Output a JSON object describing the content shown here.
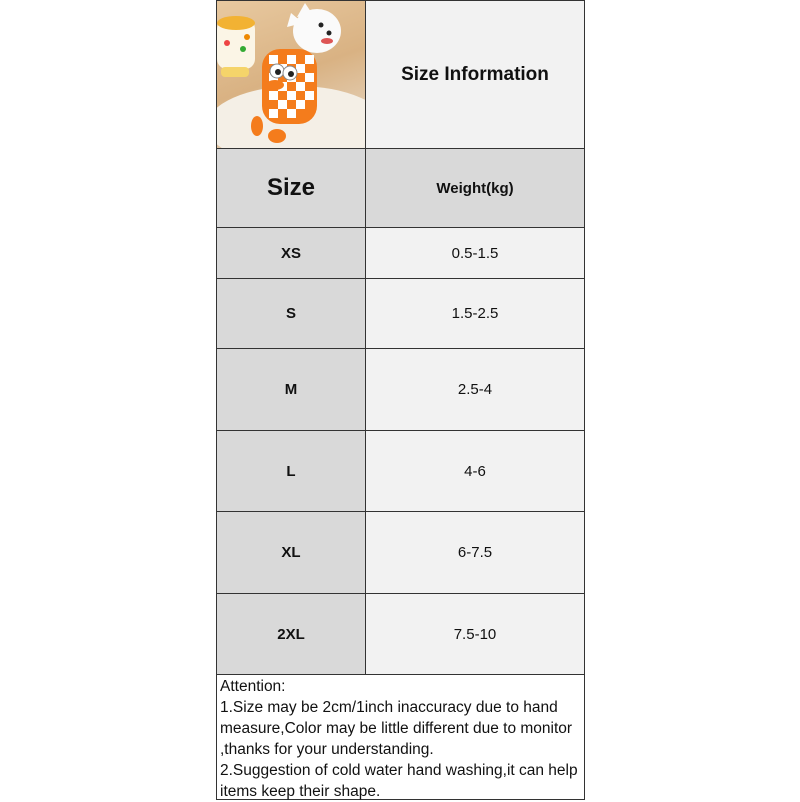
{
  "header": {
    "title": "Size Information"
  },
  "columns": {
    "size": "Size",
    "weight": "Weight(kg)"
  },
  "rows": [
    {
      "size": "XS",
      "weight": "0.5-1.5"
    },
    {
      "size": "S",
      "weight": "1.5-2.5"
    },
    {
      "size": "M",
      "weight": "2.5-4"
    },
    {
      "size": "L",
      "weight": "4-6"
    },
    {
      "size": "XL",
      "weight": "6-7.5"
    },
    {
      "size": "2XL",
      "weight": "7.5-10"
    }
  ],
  "attention": {
    "heading": "Attention:",
    "lines": [
      "1.Size may be 2cm/1inch inaccuracy due to hand measure,Color may be little different due to monitor ,thanks for your understanding.",
      "2.Suggestion of cold water hand washing,it can help items keep their shape."
    ]
  },
  "colors": {
    "size_cell": "#d9d9d9",
    "value_cell": "#f2f2f2",
    "border": "#333333",
    "vest_orange": "#f47c1c"
  }
}
